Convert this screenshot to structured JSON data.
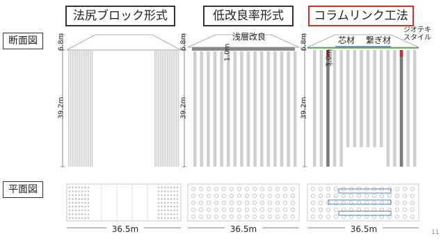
{
  "row_labels": {
    "section": "断面図",
    "plan": "平面図"
  },
  "methods": [
    {
      "title": "法尻ブロック形式",
      "highlight": false,
      "top_dim": "6.8m",
      "depth_dim": "39.2m",
      "width_dim": "36.5m"
    },
    {
      "title": "低改良率形式",
      "highlight": false,
      "top_dim": "6.8m",
      "depth_dim": "39.2m",
      "width_dim": "36.5m",
      "labels": {
        "shallow": "浅層改良",
        "shallow_depth": "1.0m"
      }
    },
    {
      "title": "コラムリンク工法",
      "highlight": true,
      "top_dim": "6.8m",
      "depth_dim": "39.2m",
      "width_dim": "36.5m",
      "labels": {
        "core": "芯材",
        "connector": "繋ぎ材",
        "geotextile": "ジオテキスタイル",
        "core_depth": "3.0m"
      }
    }
  ],
  "page_number": "11",
  "colors": {
    "highlight_border": "#d92b2b",
    "column_fill": "#cfcfcf",
    "core_column": "#7a7a7a",
    "geotextile": "#58a84e",
    "connector": "#3a6fc9",
    "plan_dot": "#bbbbbb",
    "red_marker": "#c53030"
  }
}
